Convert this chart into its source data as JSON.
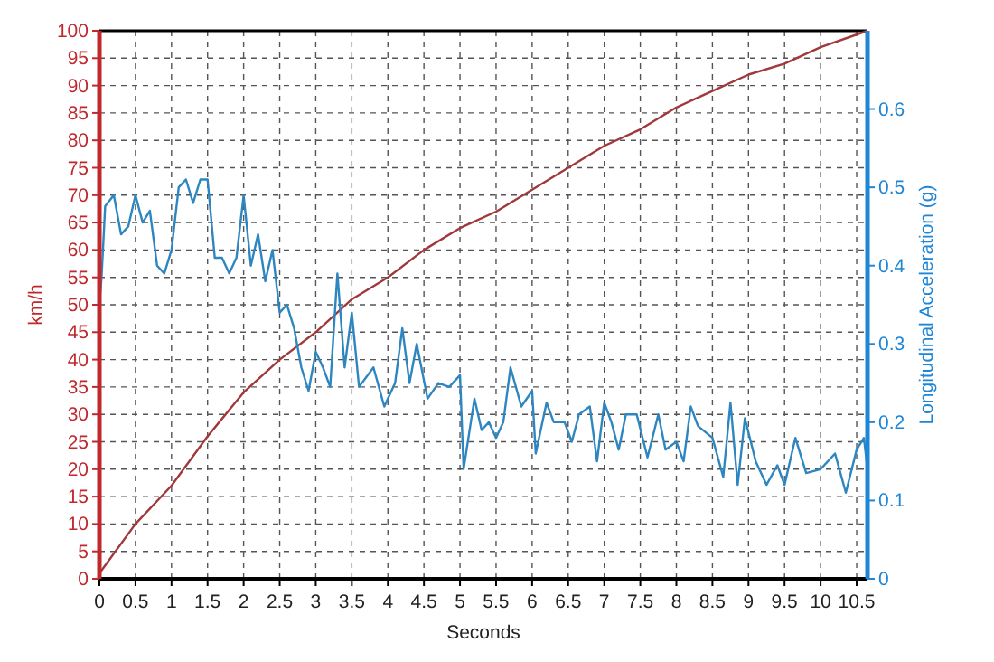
{
  "chart_data": {
    "type": "line",
    "xlabel": "Seconds",
    "ylabel": "km/h",
    "y2label": "Longitudinal Acceleration (g)",
    "xlim": [
      0,
      10.65
    ],
    "xticks": [
      0,
      0.5,
      1,
      1.5,
      2,
      2.5,
      3,
      3.5,
      4,
      4.5,
      5,
      5.5,
      6,
      6.5,
      7,
      7.5,
      8,
      8.5,
      9,
      9.5,
      10,
      10.5
    ],
    "ylim": [
      0,
      100
    ],
    "yticks": [
      0,
      5,
      10,
      15,
      20,
      25,
      30,
      35,
      40,
      45,
      50,
      55,
      60,
      65,
      70,
      75,
      80,
      85,
      90,
      95,
      100
    ],
    "y2lim": [
      0,
      0.7
    ],
    "y2ticks": [
      0,
      0.1,
      0.2,
      0.3,
      0.4,
      0.5,
      0.6
    ],
    "grid": true,
    "line_style": "solid",
    "series": [
      {
        "color": "#a0393c",
        "x": [
          0,
          0.5,
          1,
          1.5,
          2,
          2.5,
          3,
          3.5,
          4,
          4.5,
          5,
          5.5,
          6,
          6.5,
          7,
          7.5,
          8,
          8.5,
          9,
          9.5,
          10,
          10.65
        ],
        "values": [
          1,
          10,
          17,
          26,
          34,
          40,
          45,
          51,
          55,
          60,
          64,
          67,
          71,
          75,
          79,
          82,
          86,
          89,
          92,
          94,
          97,
          100
        ]
      },
      {
        "color": "#2e86c1",
        "axis": "y2",
        "x": [
          0,
          0.03,
          0.08,
          0.2,
          0.3,
          0.4,
          0.5,
          0.6,
          0.7,
          0.8,
          0.9,
          1.0,
          1.1,
          1.2,
          1.3,
          1.4,
          1.5,
          1.6,
          1.7,
          1.8,
          1.9,
          2.0,
          2.1,
          2.2,
          2.3,
          2.4,
          2.5,
          2.6,
          2.7,
          2.8,
          2.9,
          3.0,
          3.1,
          3.2,
          3.3,
          3.4,
          3.5,
          3.6,
          3.8,
          3.95,
          4.1,
          4.2,
          4.3,
          4.4,
          4.55,
          4.7,
          4.85,
          5.0,
          5.05,
          5.2,
          5.3,
          5.4,
          5.5,
          5.6,
          5.7,
          5.85,
          6.0,
          6.05,
          6.2,
          6.3,
          6.45,
          6.55,
          6.65,
          6.8,
          6.9,
          7.0,
          7.1,
          7.2,
          7.3,
          7.45,
          7.6,
          7.75,
          7.85,
          8.0,
          8.1,
          8.2,
          8.3,
          8.5,
          8.65,
          8.75,
          8.85,
          8.95,
          9.1,
          9.25,
          9.4,
          9.5,
          9.65,
          9.8,
          10.0,
          10.2,
          10.35,
          10.5,
          10.6,
          10.65
        ],
        "values": [
          0.35,
          0.385,
          0.476,
          0.49,
          0.44,
          0.45,
          0.49,
          0.455,
          0.47,
          0.4,
          0.39,
          0.42,
          0.5,
          0.51,
          0.48,
          0.51,
          0.51,
          0.41,
          0.41,
          0.39,
          0.41,
          0.49,
          0.4,
          0.44,
          0.38,
          0.42,
          0.34,
          0.35,
          0.32,
          0.27,
          0.24,
          0.29,
          0.27,
          0.245,
          0.39,
          0.27,
          0.34,
          0.245,
          0.27,
          0.22,
          0.25,
          0.32,
          0.25,
          0.3,
          0.23,
          0.25,
          0.245,
          0.26,
          0.14,
          0.23,
          0.19,
          0.2,
          0.18,
          0.2,
          0.27,
          0.22,
          0.24,
          0.16,
          0.225,
          0.2,
          0.2,
          0.175,
          0.21,
          0.22,
          0.15,
          0.225,
          0.2,
          0.165,
          0.21,
          0.21,
          0.155,
          0.21,
          0.165,
          0.175,
          0.15,
          0.22,
          0.195,
          0.18,
          0.13,
          0.225,
          0.12,
          0.205,
          0.15,
          0.12,
          0.145,
          0.12,
          0.18,
          0.135,
          0.14,
          0.16,
          0.11,
          0.165,
          0.18,
          0.14
        ]
      }
    ]
  }
}
